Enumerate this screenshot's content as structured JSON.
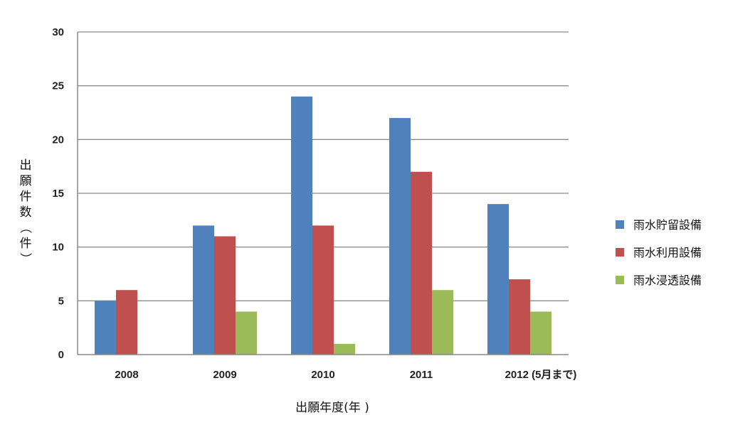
{
  "chart_data": {
    "type": "bar",
    "categories": [
      "2008",
      "2009",
      "2010",
      "2011",
      "2012 (5月まで)"
    ],
    "series": [
      {
        "name": "雨水貯留設備",
        "values": [
          5,
          12,
          24,
          22,
          14
        ],
        "color": "#4f81bd"
      },
      {
        "name": "雨水利用設備",
        "values": [
          6,
          11,
          12,
          17,
          7
        ],
        "color": "#c0504d"
      },
      {
        "name": "雨水浸透設備",
        "values": [
          0,
          4,
          1,
          6,
          4
        ],
        "color": "#9bbb59"
      }
    ],
    "xlabel": "出願年度(年 )",
    "ylabel": "出願件数（件）",
    "ylim": [
      0,
      30
    ],
    "yticks": [
      "0",
      "5",
      "10",
      "15",
      "20",
      "25",
      "30"
    ],
    "grid": true,
    "legend_position": "right"
  }
}
